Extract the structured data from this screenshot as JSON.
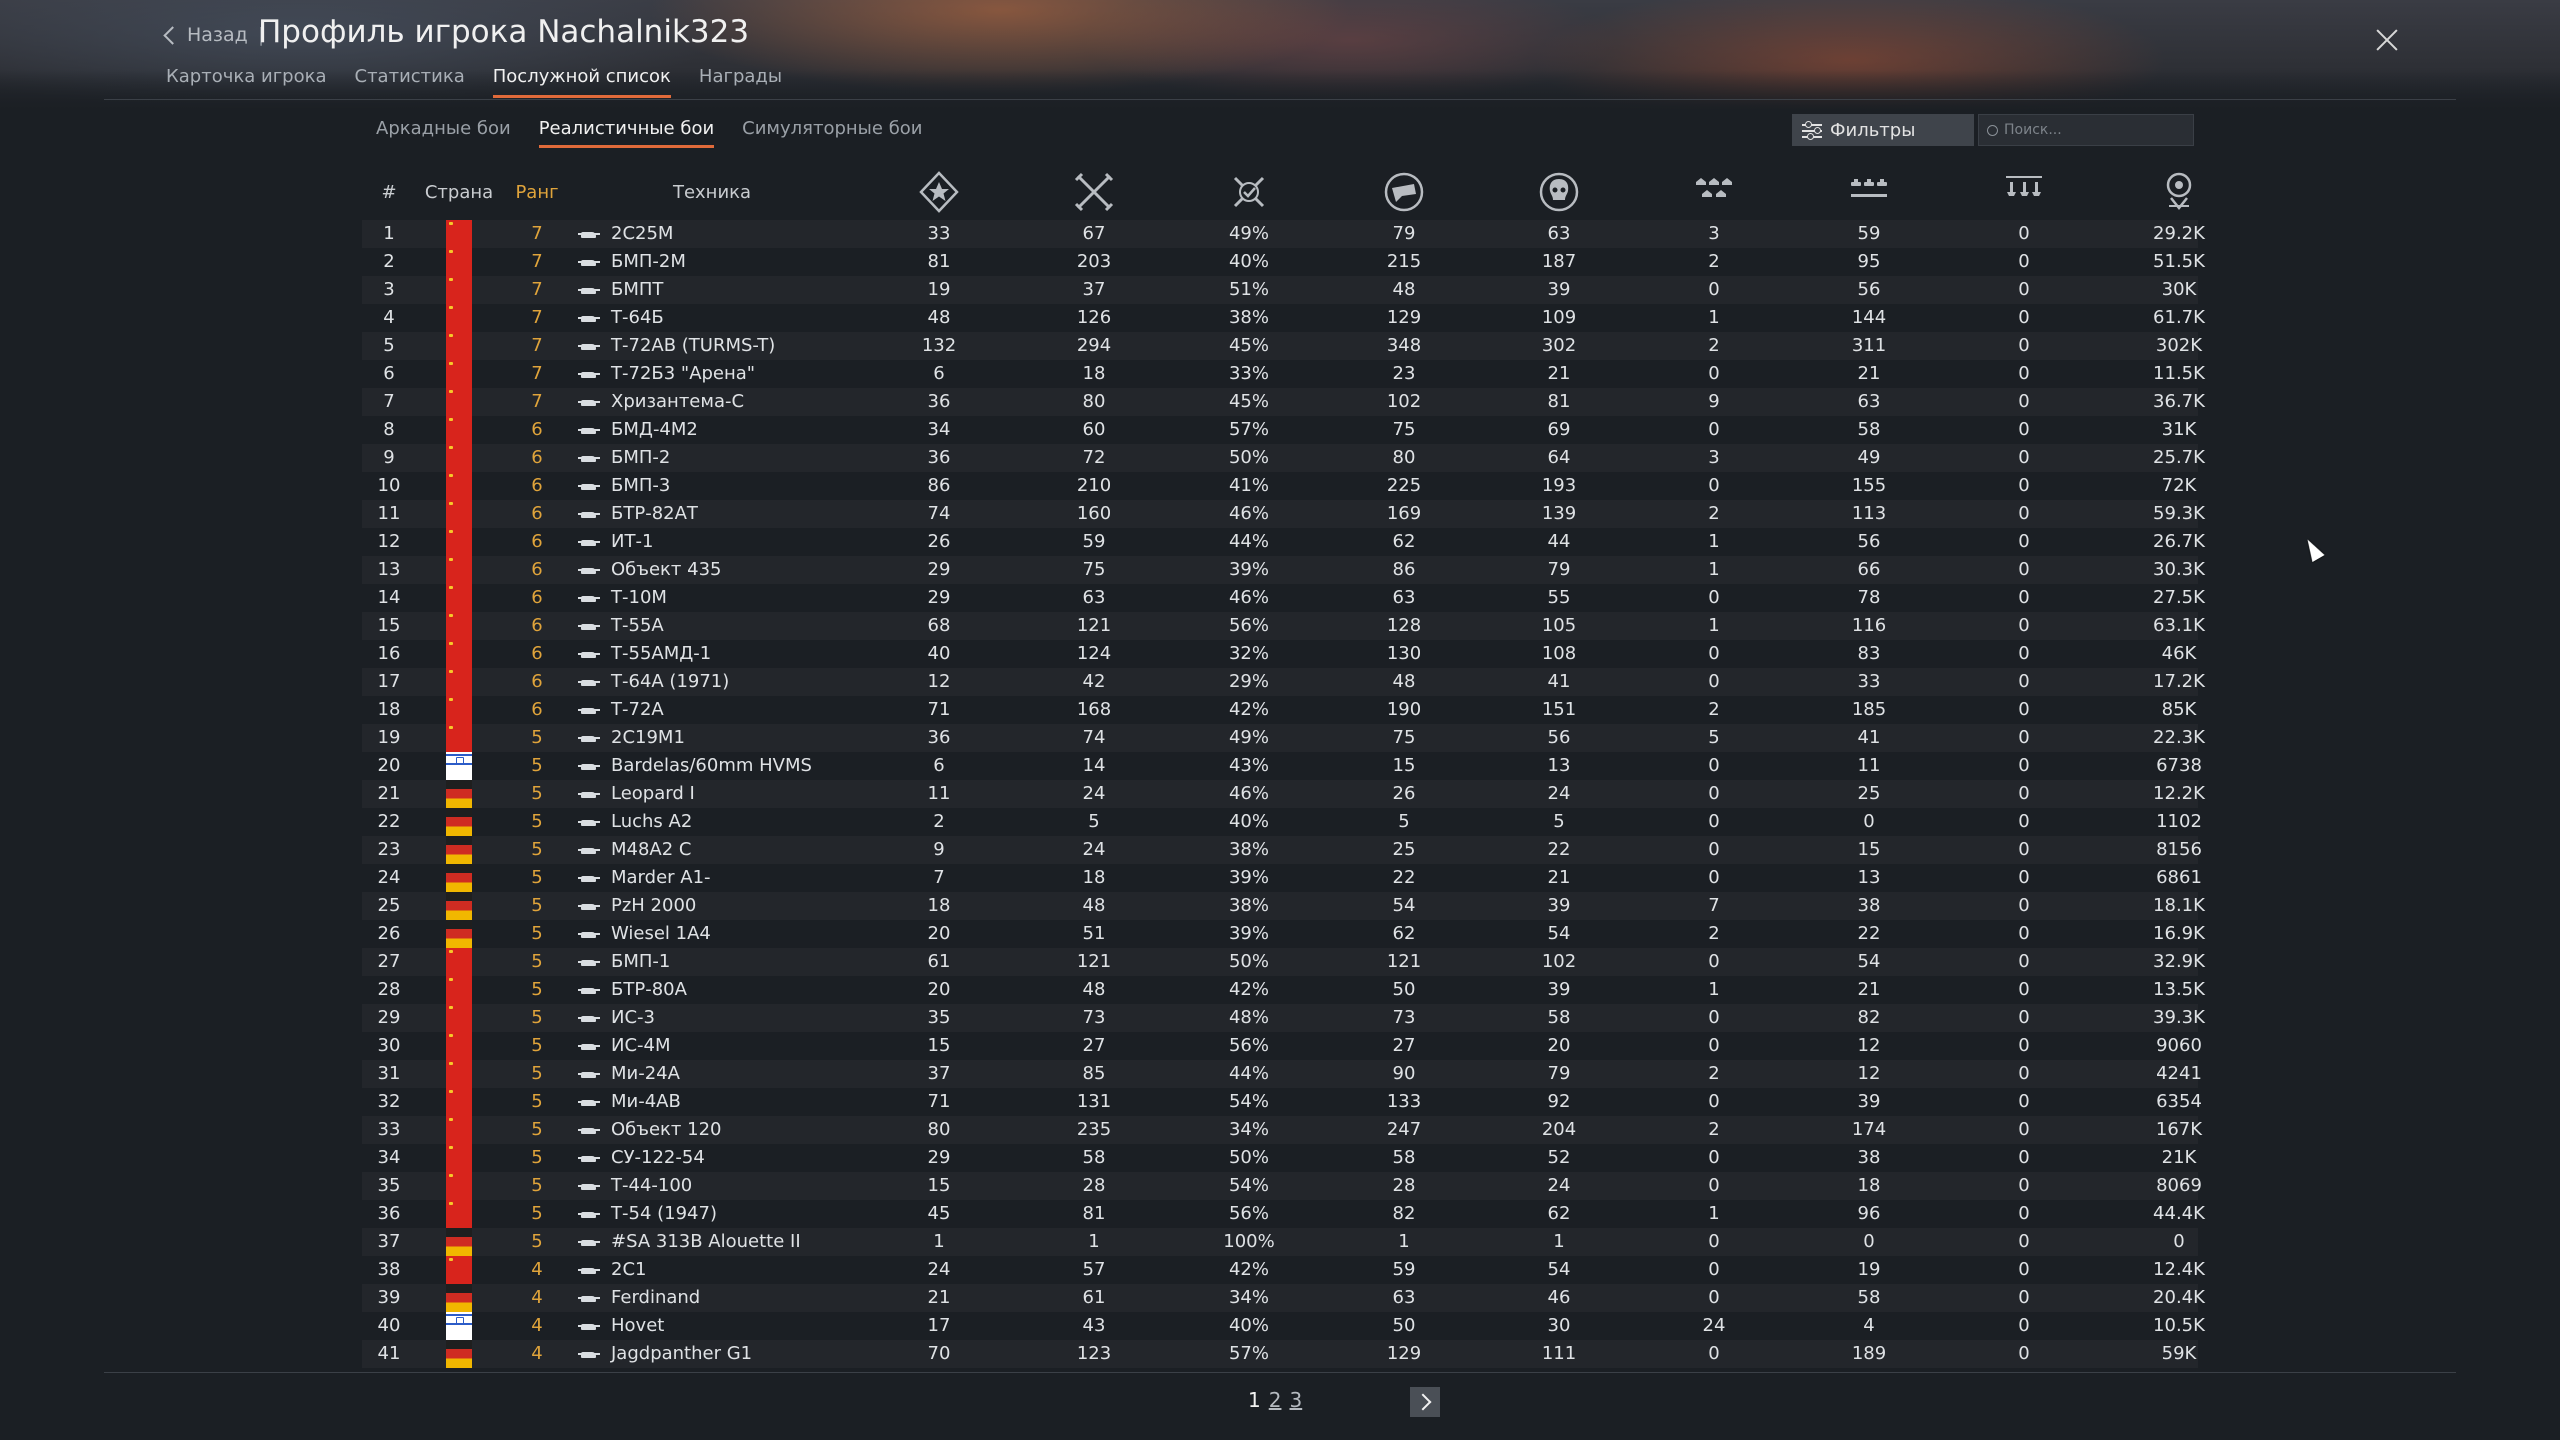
{
  "header": {
    "back_label": "Назад",
    "separator": "|",
    "title": "Профиль игрока Nachalnik323"
  },
  "tabs": [
    {
      "label": "Карточка игрока",
      "active": false
    },
    {
      "label": "Статистика",
      "active": false
    },
    {
      "label": "Послужной список",
      "active": true
    },
    {
      "label": "Награды",
      "active": false
    }
  ],
  "mode_tabs": [
    {
      "label": "Аркадные бои",
      "active": false
    },
    {
      "label": "Реалистичные бои",
      "active": true
    },
    {
      "label": "Симуляторные бои",
      "active": false
    }
  ],
  "toolbar": {
    "filters_label": "Фильтры",
    "search_placeholder": "Поиск..."
  },
  "columns": {
    "num": "#",
    "country": "Страна",
    "rank": "Ранг",
    "vehicle": "Техника",
    "stat_icons": [
      "battles-icon",
      "victories-icon",
      "win-rate-icon",
      "respawns-icon",
      "deaths-icon",
      "air-kills-icon",
      "ground-kills-icon",
      "naval-kills-icon",
      "experience-icon"
    ]
  },
  "colors": {
    "accent": "#e06a3a",
    "rank": "#e0a43b"
  },
  "rows": [
    {
      "n": "1",
      "country": "ussr",
      "rank": "7",
      "vehicle": "2С25М",
      "v": [
        "33",
        "67",
        "49%",
        "79",
        "63",
        "3",
        "59",
        "0",
        "29.2K"
      ]
    },
    {
      "n": "2",
      "country": "ussr",
      "rank": "7",
      "vehicle": "БМП-2М",
      "v": [
        "81",
        "203",
        "40%",
        "215",
        "187",
        "2",
        "95",
        "0",
        "51.5K"
      ]
    },
    {
      "n": "3",
      "country": "ussr",
      "rank": "7",
      "vehicle": "БМПТ",
      "v": [
        "19",
        "37",
        "51%",
        "48",
        "39",
        "0",
        "56",
        "0",
        "30K"
      ]
    },
    {
      "n": "4",
      "country": "ussr",
      "rank": "7",
      "vehicle": "Т-64Б",
      "v": [
        "48",
        "126",
        "38%",
        "129",
        "109",
        "1",
        "144",
        "0",
        "61.7K"
      ]
    },
    {
      "n": "5",
      "country": "ussr",
      "rank": "7",
      "vehicle": "Т-72АВ (TURMS-T)",
      "v": [
        "132",
        "294",
        "45%",
        "348",
        "302",
        "2",
        "311",
        "0",
        "302K"
      ]
    },
    {
      "n": "6",
      "country": "ussr",
      "rank": "7",
      "vehicle": "Т-72Б3 \"Арена\"",
      "v": [
        "6",
        "18",
        "33%",
        "23",
        "21",
        "0",
        "21",
        "0",
        "11.5K"
      ]
    },
    {
      "n": "7",
      "country": "ussr",
      "rank": "7",
      "vehicle": "Хризантема-С",
      "v": [
        "36",
        "80",
        "45%",
        "102",
        "81",
        "9",
        "63",
        "0",
        "36.7K"
      ]
    },
    {
      "n": "8",
      "country": "ussr",
      "rank": "6",
      "vehicle": "БМД-4М2",
      "v": [
        "34",
        "60",
        "57%",
        "75",
        "69",
        "0",
        "58",
        "0",
        "31K"
      ]
    },
    {
      "n": "9",
      "country": "ussr",
      "rank": "6",
      "vehicle": "БМП-2",
      "v": [
        "36",
        "72",
        "50%",
        "80",
        "64",
        "3",
        "49",
        "0",
        "25.7K"
      ]
    },
    {
      "n": "10",
      "country": "ussr",
      "rank": "6",
      "vehicle": "БМП-3",
      "v": [
        "86",
        "210",
        "41%",
        "225",
        "193",
        "0",
        "155",
        "0",
        "72K"
      ]
    },
    {
      "n": "11",
      "country": "ussr",
      "rank": "6",
      "vehicle": "БТР-82АТ",
      "v": [
        "74",
        "160",
        "46%",
        "169",
        "139",
        "2",
        "113",
        "0",
        "59.3K"
      ]
    },
    {
      "n": "12",
      "country": "ussr",
      "rank": "6",
      "vehicle": "ИТ-1",
      "v": [
        "26",
        "59",
        "44%",
        "62",
        "44",
        "1",
        "56",
        "0",
        "26.7K"
      ]
    },
    {
      "n": "13",
      "country": "ussr",
      "rank": "6",
      "vehicle": "Объект 435",
      "v": [
        "29",
        "75",
        "39%",
        "86",
        "79",
        "1",
        "66",
        "0",
        "30.3K"
      ]
    },
    {
      "n": "14",
      "country": "ussr",
      "rank": "6",
      "vehicle": "Т-10М",
      "v": [
        "29",
        "63",
        "46%",
        "63",
        "55",
        "0",
        "78",
        "0",
        "27.5K"
      ]
    },
    {
      "n": "15",
      "country": "ussr",
      "rank": "6",
      "vehicle": "Т-55А",
      "v": [
        "68",
        "121",
        "56%",
        "128",
        "105",
        "1",
        "116",
        "0",
        "63.1K"
      ]
    },
    {
      "n": "16",
      "country": "ussr",
      "rank": "6",
      "vehicle": "Т-55АМД-1",
      "v": [
        "40",
        "124",
        "32%",
        "130",
        "108",
        "0",
        "83",
        "0",
        "46K"
      ]
    },
    {
      "n": "17",
      "country": "ussr",
      "rank": "6",
      "vehicle": "Т-64А (1971)",
      "v": [
        "12",
        "42",
        "29%",
        "48",
        "41",
        "0",
        "33",
        "0",
        "17.2K"
      ]
    },
    {
      "n": "18",
      "country": "ussr",
      "rank": "6",
      "vehicle": "Т-72А",
      "v": [
        "71",
        "168",
        "42%",
        "190",
        "151",
        "2",
        "185",
        "0",
        "85K"
      ]
    },
    {
      "n": "19",
      "country": "ussr",
      "rank": "5",
      "vehicle": "2С19М1",
      "v": [
        "36",
        "74",
        "49%",
        "75",
        "56",
        "5",
        "41",
        "0",
        "22.3K"
      ]
    },
    {
      "n": "20",
      "country": "israel",
      "rank": "5",
      "vehicle": "Bardelas/60mm HVMS",
      "v": [
        "6",
        "14",
        "43%",
        "15",
        "13",
        "0",
        "11",
        "0",
        "6738"
      ]
    },
    {
      "n": "21",
      "country": "germany",
      "rank": "5",
      "vehicle": "Leopard I",
      "v": [
        "11",
        "24",
        "46%",
        "26",
        "24",
        "0",
        "25",
        "0",
        "12.2K"
      ]
    },
    {
      "n": "22",
      "country": "germany",
      "rank": "5",
      "vehicle": "Luchs A2",
      "v": [
        "2",
        "5",
        "40%",
        "5",
        "5",
        "0",
        "0",
        "0",
        "1102"
      ]
    },
    {
      "n": "23",
      "country": "germany",
      "rank": "5",
      "vehicle": "M48A2 C",
      "v": [
        "9",
        "24",
        "38%",
        "25",
        "22",
        "0",
        "15",
        "0",
        "8156"
      ]
    },
    {
      "n": "24",
      "country": "germany",
      "rank": "5",
      "vehicle": "Marder A1-",
      "v": [
        "7",
        "18",
        "39%",
        "22",
        "21",
        "0",
        "13",
        "0",
        "6861"
      ]
    },
    {
      "n": "25",
      "country": "germany",
      "rank": "5",
      "vehicle": "PzH 2000",
      "v": [
        "18",
        "48",
        "38%",
        "54",
        "39",
        "7",
        "38",
        "0",
        "18.1K"
      ]
    },
    {
      "n": "26",
      "country": "germany",
      "rank": "5",
      "vehicle": "Wiesel 1A4",
      "v": [
        "20",
        "51",
        "39%",
        "62",
        "54",
        "2",
        "22",
        "0",
        "16.9K"
      ]
    },
    {
      "n": "27",
      "country": "ussr",
      "rank": "5",
      "vehicle": "БМП-1",
      "v": [
        "61",
        "121",
        "50%",
        "121",
        "102",
        "0",
        "54",
        "0",
        "32.9K"
      ]
    },
    {
      "n": "28",
      "country": "ussr",
      "rank": "5",
      "vehicle": "БТР-80А",
      "v": [
        "20",
        "48",
        "42%",
        "50",
        "39",
        "1",
        "21",
        "0",
        "13.5K"
      ]
    },
    {
      "n": "29",
      "country": "ussr",
      "rank": "5",
      "vehicle": "ИС-3",
      "v": [
        "35",
        "73",
        "48%",
        "73",
        "58",
        "0",
        "82",
        "0",
        "39.3K"
      ]
    },
    {
      "n": "30",
      "country": "ussr",
      "rank": "5",
      "vehicle": "ИС-4М",
      "v": [
        "15",
        "27",
        "56%",
        "27",
        "20",
        "0",
        "12",
        "0",
        "9060"
      ]
    },
    {
      "n": "31",
      "country": "ussr",
      "rank": "5",
      "vehicle": "Ми-24А",
      "v": [
        "37",
        "85",
        "44%",
        "90",
        "79",
        "2",
        "12",
        "0",
        "4241"
      ]
    },
    {
      "n": "32",
      "country": "ussr",
      "rank": "5",
      "vehicle": "Ми-4АВ",
      "v": [
        "71",
        "131",
        "54%",
        "133",
        "92",
        "0",
        "39",
        "0",
        "6354"
      ]
    },
    {
      "n": "33",
      "country": "ussr",
      "rank": "5",
      "vehicle": "Объект 120",
      "v": [
        "80",
        "235",
        "34%",
        "247",
        "204",
        "2",
        "174",
        "0",
        "167K"
      ]
    },
    {
      "n": "34",
      "country": "ussr",
      "rank": "5",
      "vehicle": "СУ-122-54",
      "v": [
        "29",
        "58",
        "50%",
        "58",
        "52",
        "0",
        "38",
        "0",
        "21K"
      ]
    },
    {
      "n": "35",
      "country": "ussr",
      "rank": "5",
      "vehicle": "Т-44-100",
      "v": [
        "15",
        "28",
        "54%",
        "28",
        "24",
        "0",
        "18",
        "0",
        "8069"
      ]
    },
    {
      "n": "36",
      "country": "ussr",
      "rank": "5",
      "vehicle": "Т-54 (1947)",
      "v": [
        "45",
        "81",
        "56%",
        "82",
        "62",
        "1",
        "96",
        "0",
        "44.4K"
      ]
    },
    {
      "n": "37",
      "country": "germany",
      "rank": "5",
      "vehicle": "#SA 313B Alouette II",
      "v": [
        "1",
        "1",
        "100%",
        "1",
        "1",
        "0",
        "0",
        "0",
        "0"
      ]
    },
    {
      "n": "38",
      "country": "ussr",
      "rank": "4",
      "vehicle": "2С1",
      "v": [
        "24",
        "57",
        "42%",
        "59",
        "54",
        "0",
        "19",
        "0",
        "12.4K"
      ]
    },
    {
      "n": "39",
      "country": "germany",
      "rank": "4",
      "vehicle": "Ferdinand",
      "v": [
        "21",
        "61",
        "34%",
        "63",
        "46",
        "0",
        "58",
        "0",
        "20.4K"
      ]
    },
    {
      "n": "40",
      "country": "israel",
      "rank": "4",
      "vehicle": "Hovet",
      "v": [
        "17",
        "43",
        "40%",
        "50",
        "30",
        "24",
        "4",
        "0",
        "10.5K"
      ]
    },
    {
      "n": "41",
      "country": "germany",
      "rank": "4",
      "vehicle": "Jagdpanther G1",
      "v": [
        "70",
        "123",
        "57%",
        "129",
        "111",
        "0",
        "189",
        "0",
        "59K"
      ]
    }
  ],
  "pagination": {
    "pages": [
      "1",
      "2",
      "3"
    ],
    "current": "1"
  }
}
